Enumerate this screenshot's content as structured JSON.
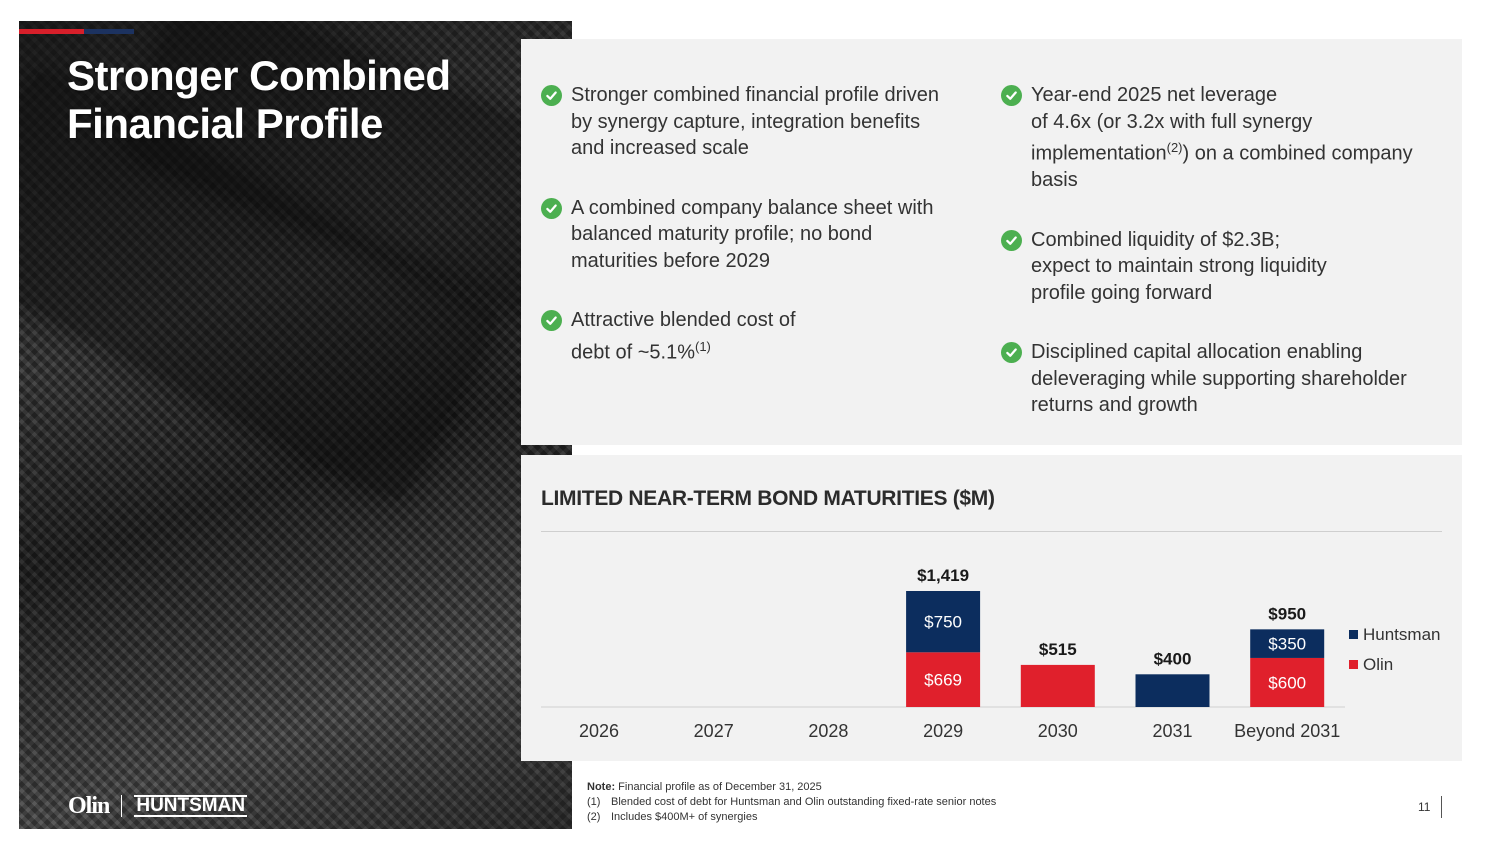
{
  "slide": {
    "title_line1": "Stronger Combined",
    "title_line2": "Financial Profile",
    "page_number": "11",
    "logos": {
      "left": "Olin",
      "right": "HUNTSMAN"
    }
  },
  "bullets_left": [
    {
      "lines": [
        "Stronger combined financial profile driven",
        "by synergy capture, integration benefits",
        "and increased scale"
      ]
    },
    {
      "lines": [
        "A combined company balance sheet with",
        "balanced maturity profile; no bond",
        "maturities before 2029"
      ]
    },
    {
      "lines": [
        "Attractive blended cost of",
        "debt of ~5.1%"
      ],
      "sup": "(1)"
    }
  ],
  "bullets_right": [
    {
      "line1": "Year-end 2025 net leverage",
      "line2": "of 4.6x (or 3.2x with full synergy",
      "line3_pre": "implementation",
      "line3_sup": "(2)",
      "line3_post": ") on a combined company",
      "line4": "basis"
    },
    {
      "lines": [
        "Combined liquidity of $2.3B;",
        "expect to maintain strong liquidity",
        "profile going forward"
      ]
    },
    {
      "lines": [
        "Disciplined capital allocation enabling",
        "deleveraging while supporting shareholder",
        "returns and growth"
      ]
    }
  ],
  "notes": {
    "note_label": "Note:",
    "note_text": " Financial profile as of December 31, 2025",
    "items": [
      {
        "num": "(1)",
        "text": "Blended cost of debt for Huntsman and Olin outstanding fixed-rate senior notes"
      },
      {
        "num": "(2)",
        "text": "Includes $400M+ of synergies"
      }
    ]
  },
  "colors": {
    "huntsman": "#0c2d5e",
    "olin": "#e0202c",
    "check": "#4caf50"
  },
  "chart_data": {
    "type": "bar",
    "stacked": true,
    "title": "LIMITED NEAR-TERM BOND MATURITIES ($M)",
    "categories": [
      "2026",
      "2027",
      "2028",
      "2029",
      "2030",
      "2031",
      "Beyond 2031"
    ],
    "series": [
      {
        "name": "Olin",
        "values": [
          0,
          0,
          0,
          669,
          515,
          0,
          600
        ],
        "labels": [
          "",
          "",
          "",
          "$669",
          "",
          "",
          "$600"
        ]
      },
      {
        "name": "Huntsman",
        "values": [
          0,
          0,
          0,
          750,
          0,
          400,
          350
        ],
        "labels": [
          "",
          "",
          "",
          "$750",
          "",
          "",
          "$350"
        ]
      }
    ],
    "totals": [
      "",
      "",
      "",
      "$1,419",
      "$515",
      "$400",
      "$950"
    ],
    "legend": {
      "position": "right",
      "entries": [
        "Huntsman",
        "Olin"
      ]
    }
  }
}
